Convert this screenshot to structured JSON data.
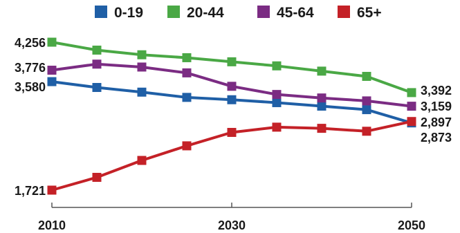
{
  "chart_data": {
    "type": "line",
    "title": "",
    "xlabel": "",
    "ylabel": "",
    "x": [
      2010,
      2015,
      2020,
      2025,
      2030,
      2035,
      2040,
      2045,
      2050
    ],
    "x_ticks": [
      "2010",
      "2030",
      "2050"
    ],
    "ylim": [
      1500,
      4400
    ],
    "grid": false,
    "legend": "top",
    "series": [
      {
        "name": "0-19",
        "color": "#1f5fa6",
        "values": [
          3580,
          3480,
          3400,
          3310,
          3270,
          3220,
          3160,
          3100,
          2873
        ],
        "start_label": "3,580",
        "end_label": "2,873"
      },
      {
        "name": "20-44",
        "color": "#4aa845",
        "values": [
          4256,
          4120,
          4040,
          3990,
          3920,
          3850,
          3760,
          3670,
          3392
        ],
        "start_label": "4,256",
        "end_label": "3,392"
      },
      {
        "name": "45-64",
        "color": "#7b2c83",
        "values": [
          3776,
          3880,
          3830,
          3730,
          3500,
          3360,
          3300,
          3250,
          3159
        ],
        "start_label": "3,776",
        "end_label": "3,159"
      },
      {
        "name": "65+",
        "color": "#c42127",
        "values": [
          1721,
          1940,
          2230,
          2480,
          2710,
          2800,
          2780,
          2730,
          2897
        ],
        "start_label": "1,721",
        "end_label": "2,897"
      }
    ]
  }
}
